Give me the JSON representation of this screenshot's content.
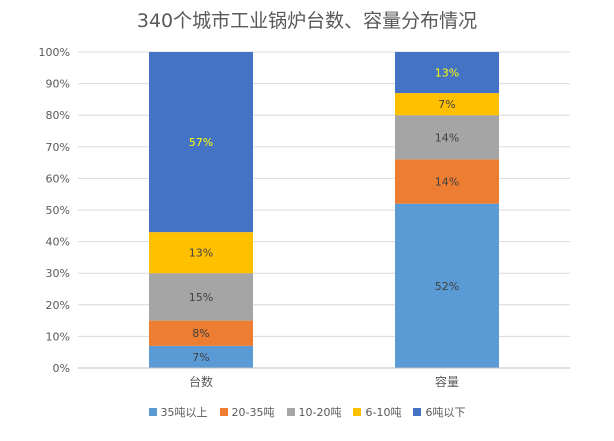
{
  "chart_data": {
    "type": "bar",
    "stacked": true,
    "percent": true,
    "title": "340个城市工业锅炉台数、容量分布情况",
    "categories": [
      "台数",
      "容量"
    ],
    "ylim": [
      0,
      100
    ],
    "yticks": [
      "0%",
      "10%",
      "20%",
      "30%",
      "40%",
      "50%",
      "60%",
      "70%",
      "80%",
      "90%",
      "100%"
    ],
    "grid": true,
    "legend_position": "bottom",
    "series": [
      {
        "name": "35吨以上",
        "color": "#5B9BD5",
        "label_color": "#404040",
        "values": [
          7,
          52
        ],
        "labels": [
          "7%",
          "52%"
        ]
      },
      {
        "name": "20-35吨",
        "color": "#ED7D31",
        "label_color": "#404040",
        "values": [
          8,
          14
        ],
        "labels": [
          "8%",
          "14%"
        ]
      },
      {
        "name": "10-20吨",
        "color": "#A5A5A5",
        "label_color": "#404040",
        "values": [
          15,
          14
        ],
        "labels": [
          "15%",
          "14%"
        ]
      },
      {
        "name": "6-10吨",
        "color": "#FFC000",
        "label_color": "#404040",
        "values": [
          13,
          7
        ],
        "labels": [
          "13%",
          "7%"
        ]
      },
      {
        "name": "6吨以下",
        "color": "#4472C4",
        "label_color": "#FFFF00",
        "values": [
          57,
          13
        ],
        "labels": [
          "57%",
          "13%"
        ]
      }
    ]
  }
}
